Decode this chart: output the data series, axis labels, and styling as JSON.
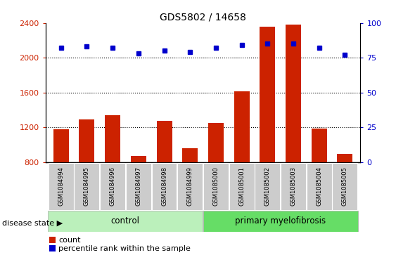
{
  "title": "GDS5802 / 14658",
  "samples": [
    "GSM1084994",
    "GSM1084995",
    "GSM1084996",
    "GSM1084997",
    "GSM1084998",
    "GSM1084999",
    "GSM1085000",
    "GSM1085001",
    "GSM1085002",
    "GSM1085003",
    "GSM1085004",
    "GSM1085005"
  ],
  "counts": [
    1175,
    1290,
    1335,
    870,
    1270,
    960,
    1250,
    1610,
    2360,
    2385,
    1185,
    890
  ],
  "percentiles": [
    82,
    83,
    82,
    78,
    80,
    79,
    82,
    84,
    85,
    85,
    82,
    77
  ],
  "ylim_left": [
    800,
    2400
  ],
  "ylim_right": [
    0,
    100
  ],
  "yticks_left": [
    800,
    1200,
    1600,
    2000,
    2400
  ],
  "yticks_right": [
    0,
    25,
    50,
    75,
    100
  ],
  "bar_color": "#cc2200",
  "dot_color": "#0000cc",
  "background_color": "#ffffff",
  "tick_bg_color": "#cccccc",
  "control_bg": "#bbf0bb",
  "myelofibrosis_bg": "#66dd66",
  "control_label": "control",
  "myelofibrosis_label": "primary myelofibrosis",
  "disease_state_label": "disease state",
  "legend_count_label": "count",
  "legend_percentile_label": "percentile rank within the sample",
  "n_control": 6,
  "n_myelofibrosis": 6,
  "dotted_line_color": "#000000",
  "ylabel_left_color": "#cc2200",
  "ylabel_right_color": "#0000cc",
  "grid_lines": [
    1200,
    1600,
    2000
  ]
}
